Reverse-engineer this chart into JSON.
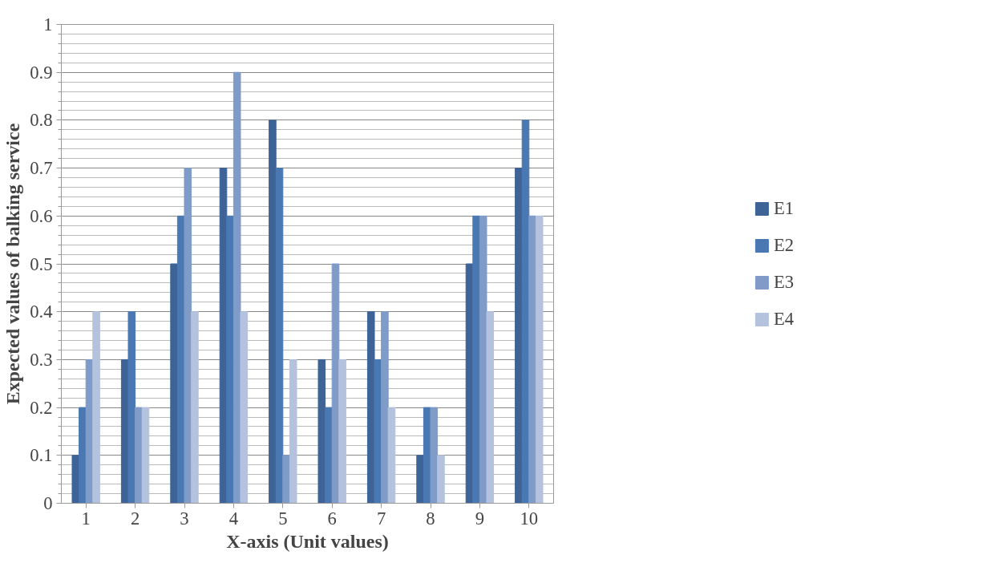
{
  "chart_data": {
    "type": "bar",
    "xlabel": "X-axis (Unit values)",
    "ylabel": "Expected values of balking service",
    "categories": [
      "1",
      "2",
      "3",
      "4",
      "5",
      "6",
      "7",
      "8",
      "9",
      "10"
    ],
    "series": [
      {
        "name": "E1",
        "color": "#3d6397",
        "values": [
          0.1,
          0.3,
          0.5,
          0.7,
          0.8,
          0.3,
          0.4,
          0.1,
          0.5,
          0.7
        ]
      },
      {
        "name": "E2",
        "color": "#4a78b2",
        "values": [
          0.2,
          0.4,
          0.6,
          0.6,
          0.7,
          0.2,
          0.3,
          0.2,
          0.6,
          0.8
        ]
      },
      {
        "name": "E3",
        "color": "#7f9bc8",
        "values": [
          0.3,
          0.2,
          0.7,
          0.9,
          0.1,
          0.5,
          0.4,
          0.2,
          0.6,
          0.6
        ]
      },
      {
        "name": "E4",
        "color": "#b4c2de",
        "values": [
          0.4,
          0.2,
          0.4,
          0.4,
          0.3,
          0.3,
          0.2,
          0.1,
          0.4,
          0.6
        ]
      }
    ],
    "ylim": [
      0,
      1
    ],
    "yticks": [
      0,
      0.1,
      0.2,
      0.3,
      0.4,
      0.5,
      0.6,
      0.7,
      0.8,
      0.9,
      1
    ],
    "grid": "y",
    "legend": "right"
  }
}
